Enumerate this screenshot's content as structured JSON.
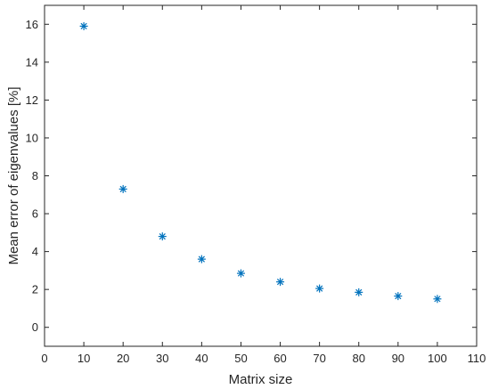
{
  "chart_data": {
    "type": "scatter",
    "title": "",
    "xlabel": "Matrix size",
    "ylabel": "Mean error of eigenvalues [%]",
    "xlim": [
      0,
      110
    ],
    "ylim": [
      -1,
      17
    ],
    "xticks": [
      0,
      10,
      20,
      30,
      40,
      50,
      60,
      70,
      80,
      90,
      100,
      110
    ],
    "yticks": [
      0,
      2,
      4,
      6,
      8,
      10,
      12,
      14,
      16
    ],
    "grid": false,
    "marker": "asterisk",
    "marker_color": "#0072BD",
    "series": [
      {
        "x": [
          10,
          20,
          30,
          40,
          50,
          60,
          70,
          80,
          90,
          100
        ],
        "y": [
          15.9,
          7.3,
          4.8,
          3.6,
          2.85,
          2.4,
          2.05,
          1.85,
          1.65,
          1.5
        ]
      }
    ]
  }
}
